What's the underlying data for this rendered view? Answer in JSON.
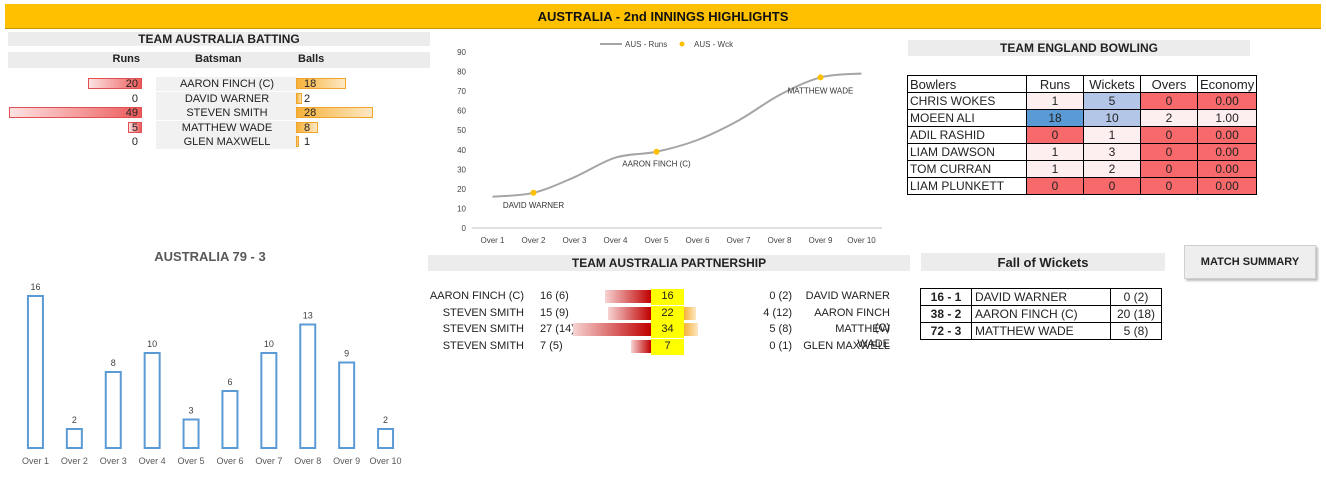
{
  "title": "AUSTRALIA - 2nd INNINGS HIGHLIGHTS",
  "batting": {
    "header": "TEAM AUSTRALIA BATTING",
    "col_runs": "Runs",
    "col_batsman": "Batsman",
    "col_balls": "Balls",
    "rows": [
      {
        "name": "AARON FINCH (C)",
        "runs": "20",
        "balls": "18",
        "runs_n": 20,
        "balls_n": 18
      },
      {
        "name": "DAVID WARNER",
        "runs": "0",
        "balls": "2",
        "runs_n": 0,
        "balls_n": 2
      },
      {
        "name": "STEVEN SMITH",
        "runs": "49",
        "balls": "28",
        "runs_n": 49,
        "balls_n": 28
      },
      {
        "name": "MATTHEW WADE",
        "runs": "5",
        "balls": "8",
        "runs_n": 5,
        "balls_n": 8
      },
      {
        "name": "GLEN MAXWELL",
        "runs": "0",
        "balls": "1",
        "runs_n": 0,
        "balls_n": 1
      }
    ]
  },
  "score_title": "AUSTRALIA 79 - 3",
  "bowling": {
    "header": "TEAM ENGLAND BOWLING",
    "columns": [
      "Bowlers",
      "Runs",
      "Wickets",
      "Overs",
      "Economy"
    ],
    "rows": [
      {
        "name": "CHRIS WOKES",
        "runs": "1",
        "wickets": "5",
        "overs": "0",
        "economy": "0.00"
      },
      {
        "name": "MOEEN ALI",
        "runs": "18",
        "wickets": "10",
        "overs": "2",
        "economy": "1.00"
      },
      {
        "name": "ADIL RASHID",
        "runs": "0",
        "wickets": "1",
        "overs": "0",
        "economy": "0.00"
      },
      {
        "name": "LIAM DAWSON",
        "runs": "1",
        "wickets": "3",
        "overs": "0",
        "economy": "0.00"
      },
      {
        "name": "TOM CURRAN",
        "runs": "1",
        "wickets": "2",
        "overs": "0",
        "economy": "0.00"
      },
      {
        "name": "LIAM PLUNKETT",
        "runs": "0",
        "wickets": "0",
        "overs": "0",
        "economy": "0.00"
      }
    ]
  },
  "partnership": {
    "header": "TEAM AUSTRALIA PARTNERSHIP",
    "rows": [
      {
        "left_name": "AARON FINCH (C)",
        "left_score": "16 (6)",
        "total": "16",
        "left_n": 16,
        "right_n": 0,
        "right_score": "0 (2)",
        "right_name": "DAVID WARNER"
      },
      {
        "left_name": "STEVEN SMITH",
        "left_score": "15 (9)",
        "total": "22",
        "left_n": 15,
        "right_n": 4,
        "right_score": "4 (12)",
        "right_name": "AARON FINCH (C)"
      },
      {
        "left_name": "STEVEN SMITH",
        "left_score": "27 (14)",
        "total": "34",
        "left_n": 27,
        "right_n": 5,
        "right_score": "5 (8)",
        "right_name": "MATTHEW WADE"
      },
      {
        "left_name": "STEVEN SMITH",
        "left_score": "7 (5)",
        "total": "7",
        "left_n": 7,
        "right_n": 0,
        "right_score": "0 (1)",
        "right_name": "GLEN MAXWELL"
      }
    ]
  },
  "fall_of_wickets": {
    "header": "Fall of Wickets",
    "rows": [
      {
        "score": "16 - 1",
        "name": "DAVID WARNER",
        "runs": "0 (2)"
      },
      {
        "score": "38 - 2",
        "name": "AARON FINCH (C)",
        "runs": "20 (18)"
      },
      {
        "score": "72 - 3",
        "name": "MATTHEW WADE",
        "runs": "5 (8)"
      }
    ]
  },
  "match_summary_label": "MATCH SUMMARY",
  "chart_data": [
    {
      "type": "line",
      "categories": [
        "Over 1",
        "Over 2",
        "Over 3",
        "Over 4",
        "Over 5",
        "Over 6",
        "Over 7",
        "Over 8",
        "Over 9",
        "Over 10"
      ],
      "series": [
        {
          "name": "AUS - Runs",
          "values": [
            16,
            18,
            26,
            36,
            39,
            45,
            55,
            68,
            77,
            79
          ]
        },
        {
          "name": "AUS - Wck",
          "points": [
            {
              "x": "Over 2",
              "y": 18,
              "label": "DAVID WARNER"
            },
            {
              "x": "Over 5",
              "y": 39,
              "label": "AARON FINCH (C)"
            },
            {
              "x": "Over 9",
              "y": 77,
              "label": "MATTHEW WADE"
            }
          ]
        }
      ],
      "ylim": [
        0,
        90
      ],
      "yticks": [
        "0",
        "10",
        "20",
        "30",
        "40",
        "50",
        "60",
        "70",
        "80",
        "90"
      ],
      "legend": "top",
      "colors": {
        "runs": "#A5A5A5",
        "wickets": "#FFC000"
      }
    },
    {
      "type": "bar",
      "categories": [
        "Over 1",
        "Over 2",
        "Over 3",
        "Over 4",
        "Over 5",
        "Over 6",
        "Over 7",
        "Over 8",
        "Over 9",
        "Over 10"
      ],
      "values": [
        16,
        2,
        8,
        10,
        3,
        6,
        10,
        13,
        9,
        2
      ],
      "labels": [
        "16",
        "2",
        "8",
        "10",
        "3",
        "6",
        "10",
        "13",
        "9",
        "2"
      ],
      "ylim": [
        0,
        16
      ],
      "colors": {
        "bar_border": "#5B9BD5"
      }
    }
  ]
}
